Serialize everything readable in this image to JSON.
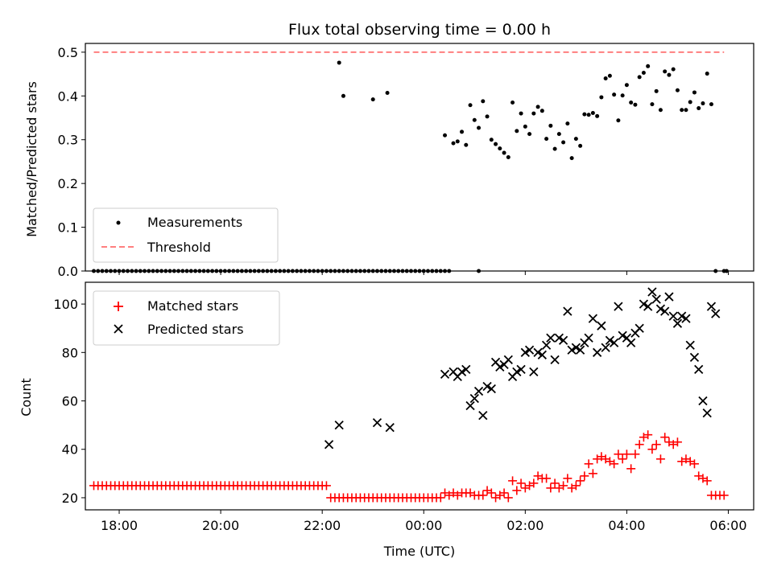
{
  "chart_data": [
    {
      "type": "scatter",
      "title": "Flux total observing time = 0.00 h",
      "ylabel": "Matched/Predicted stars",
      "xlabel": "",
      "xlim": [
        "17:20",
        "06:30"
      ],
      "ylim": [
        0,
        0.52
      ],
      "yticks": [
        "0.0",
        "0.1",
        "0.2",
        "0.3",
        "0.4",
        "0.5"
      ],
      "legend": {
        "placement": "lower-left",
        "entries": [
          "Measurements",
          "Threshold"
        ]
      },
      "threshold": {
        "name": "Threshold",
        "y": 0.5,
        "x_start": "17:30",
        "x_end": "05:55",
        "color": "#ff7f7f"
      },
      "series": [
        {
          "name": "Measurements",
          "color": "#000000",
          "x": [
            "22:20",
            "22:25",
            "23:00",
            "23:17",
            "00:25",
            "00:35",
            "00:40",
            "00:45",
            "00:50",
            "00:55",
            "01:00",
            "01:05",
            "01:10",
            "01:15",
            "01:20",
            "01:25",
            "01:30",
            "01:35",
            "01:40",
            "01:45",
            "01:50",
            "01:55",
            "02:00",
            "02:05",
            "02:10",
            "02:15",
            "02:20",
            "02:25",
            "02:30",
            "02:35",
            "02:40",
            "02:45",
            "02:50",
            "02:55",
            "03:00",
            "03:05",
            "03:10",
            "03:15",
            "03:20",
            "03:25",
            "03:30",
            "03:35",
            "03:40",
            "03:45",
            "03:50",
            "03:55",
            "04:00",
            "04:05",
            "04:10",
            "04:15",
            "04:20",
            "04:25",
            "04:30",
            "04:35",
            "04:40",
            "04:45",
            "04:50",
            "04:55",
            "05:00",
            "05:05",
            "05:10",
            "05:15",
            "05:20",
            "05:25",
            "05:30",
            "05:35",
            "05:40",
            "05:45"
          ],
          "y": [
            0.476,
            0.4,
            0.392,
            0.407,
            0.31,
            0.292,
            0.296,
            0.318,
            0.288,
            0.379,
            0.345,
            0.327,
            0.388,
            0.353,
            0.3,
            0.29,
            0.28,
            0.27,
            0.26,
            0.385,
            0.32,
            0.36,
            0.33,
            0.313,
            0.36,
            0.375,
            0.366,
            0.302,
            0.332,
            0.279,
            0.313,
            0.294,
            0.337,
            0.258,
            0.302,
            0.286,
            0.358,
            0.357,
            0.361,
            0.354,
            0.397,
            0.44,
            0.446,
            0.403,
            0.344,
            0.401,
            0.425,
            0.385,
            0.38,
            0.443,
            0.453,
            0.468,
            0.381,
            0.411,
            0.368,
            0.456,
            0.448,
            0.461,
            0.413,
            0.368,
            0.368,
            0.386,
            0.408,
            0.372,
            0.383,
            0.451,
            0.381,
            0.0
          ]
        },
        {
          "name": "Measurements",
          "color": "#000000",
          "x_range": [
            "17:30",
            "00:30"
          ],
          "step_minutes": 5,
          "extra_x": [
            "01:05",
            "05:55",
            "05:58"
          ],
          "y_constant": 0.0
        }
      ]
    },
    {
      "type": "scatter",
      "title": "",
      "ylabel": "Count",
      "xlabel": "Time (UTC)",
      "xlim": [
        "17:20",
        "06:30"
      ],
      "ylim": [
        15,
        109
      ],
      "yticks": [
        "20",
        "40",
        "60",
        "80",
        "100"
      ],
      "xticks": [
        "18:00",
        "20:00",
        "22:00",
        "00:00",
        "02:00",
        "04:00",
        "06:00"
      ],
      "legend": {
        "placement": "upper-left",
        "entries": [
          "Matched stars",
          "Predicted stars"
        ]
      },
      "series": [
        {
          "name": "Matched stars",
          "color": "#ff0000",
          "marker": "+",
          "segments": [
            {
              "x_start": "17:30",
              "x_end": "22:05",
              "step_minutes": 5,
              "y": 25
            },
            {
              "x_start": "22:10",
              "x_end": "00:20",
              "step_minutes": 5,
              "y": 20
            }
          ],
          "x": [
            "00:25",
            "00:30",
            "00:35",
            "00:40",
            "00:45",
            "00:50",
            "00:55",
            "01:00",
            "01:05",
            "01:10",
            "01:15",
            "01:20",
            "01:25",
            "01:30",
            "01:35",
            "01:40",
            "01:45",
            "01:50",
            "01:55",
            "02:00",
            "02:05",
            "02:10",
            "02:15",
            "02:20",
            "02:25",
            "02:30",
            "02:35",
            "02:40",
            "02:45",
            "02:50",
            "02:55",
            "03:00",
            "03:05",
            "03:10",
            "03:15",
            "03:20",
            "03:25",
            "03:30",
            "03:35",
            "03:40",
            "03:45",
            "03:50",
            "03:55",
            "04:00",
            "04:05",
            "04:10",
            "04:15",
            "04:20",
            "04:25",
            "04:30",
            "04:35",
            "04:40",
            "04:45",
            "04:50",
            "04:55",
            "05:00",
            "05:05",
            "05:10",
            "05:15",
            "05:20",
            "05:25",
            "05:30",
            "05:35",
            "05:40",
            "05:45",
            "05:50",
            "05:55"
          ],
          "y": [
            22,
            21,
            22,
            21,
            22,
            22,
            22,
            21,
            21,
            21,
            23,
            22,
            20,
            21,
            22,
            20,
            27,
            23,
            26,
            24,
            25,
            26,
            29,
            28,
            28,
            24,
            26,
            24,
            25,
            28,
            24,
            25,
            27,
            29,
            34,
            30,
            36,
            37,
            36,
            35,
            34,
            38,
            36,
            38,
            32,
            38,
            42,
            45,
            46,
            40,
            42,
            36,
            45,
            43,
            42,
            43,
            35,
            36,
            35,
            34,
            29,
            28,
            27,
            21,
            21,
            21,
            21
          ]
        },
        {
          "name": "Predicted stars",
          "color": "#000000",
          "marker": "x",
          "x": [
            "22:08",
            "22:20",
            "23:05",
            "23:20",
            "00:25",
            "00:35",
            "00:40",
            "00:45",
            "00:50",
            "00:55",
            "01:00",
            "01:05",
            "01:10",
            "01:15",
            "01:20",
            "01:25",
            "01:30",
            "01:35",
            "01:40",
            "01:45",
            "01:50",
            "01:55",
            "02:00",
            "02:05",
            "02:10",
            "02:15",
            "02:20",
            "02:25",
            "02:30",
            "02:35",
            "02:40",
            "02:45",
            "02:50",
            "02:55",
            "03:00",
            "03:05",
            "03:10",
            "03:15",
            "03:20",
            "03:25",
            "03:30",
            "03:35",
            "03:40",
            "03:45",
            "03:50",
            "03:55",
            "04:00",
            "04:05",
            "04:10",
            "04:15",
            "04:20",
            "04:25",
            "04:30",
            "04:35",
            "04:40",
            "04:45",
            "04:50",
            "04:55",
            "05:00",
            "05:05",
            "05:10",
            "05:15",
            "05:20",
            "05:25",
            "05:30",
            "05:35",
            "05:40",
            "05:45"
          ],
          "y": [
            42,
            50,
            51,
            49,
            71,
            72,
            70,
            72,
            73,
            58,
            61,
            64,
            54,
            66,
            65,
            76,
            74,
            75,
            77,
            70,
            72,
            73,
            80,
            81,
            72,
            80,
            79,
            83,
            86,
            77,
            86,
            85,
            97,
            81,
            82,
            81,
            84,
            86,
            94,
            80,
            91,
            82,
            85,
            84,
            99,
            87,
            86,
            84,
            88,
            90,
            100,
            99,
            105,
            102,
            98,
            97,
            103,
            95,
            92,
            95,
            94,
            83,
            78,
            73,
            60,
            55,
            99,
            96
          ]
        }
      ]
    }
  ]
}
